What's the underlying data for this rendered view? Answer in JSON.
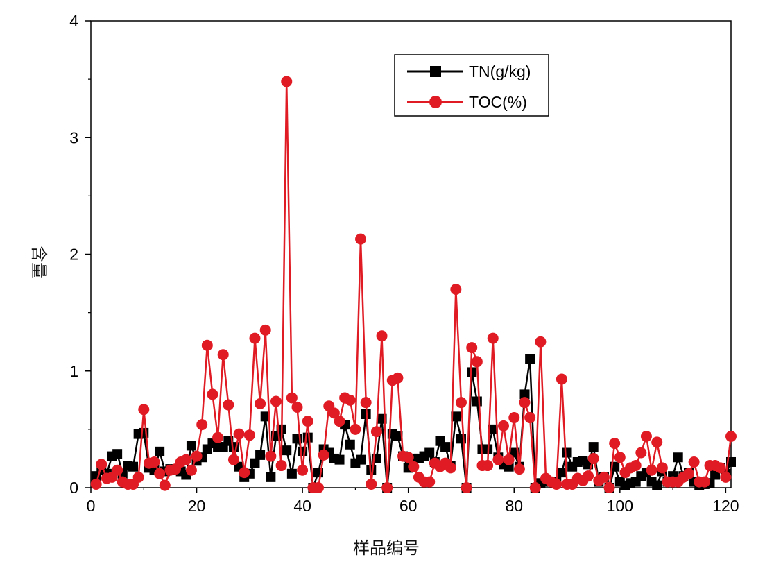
{
  "chart_data": {
    "type": "line",
    "xlabel": "样品编号",
    "ylabel": "含量",
    "xlim": [
      0,
      121
    ],
    "ylim": [
      0,
      4
    ],
    "xticks": [
      0,
      20,
      40,
      60,
      80,
      100,
      120
    ],
    "yticks": [
      0,
      1,
      2,
      3,
      4
    ],
    "grid": false,
    "legend_position": "top-center",
    "series": [
      {
        "name": "TN(g/kg)",
        "color": "#000000",
        "marker": "square",
        "x": [
          1,
          2,
          3,
          4,
          5,
          6,
          7,
          8,
          9,
          10,
          11,
          12,
          13,
          14,
          15,
          16,
          17,
          18,
          19,
          20,
          21,
          22,
          23,
          24,
          25,
          26,
          27,
          28,
          29,
          30,
          31,
          32,
          33,
          34,
          35,
          36,
          37,
          38,
          39,
          40,
          41,
          42,
          43,
          44,
          45,
          46,
          47,
          48,
          49,
          50,
          51,
          52,
          53,
          54,
          55,
          56,
          57,
          58,
          59,
          60,
          61,
          62,
          63,
          64,
          65,
          66,
          67,
          68,
          69,
          70,
          71,
          72,
          73,
          74,
          75,
          76,
          77,
          78,
          79,
          80,
          81,
          82,
          83,
          84,
          85,
          86,
          87,
          88,
          89,
          90,
          91,
          92,
          93,
          94,
          95,
          96,
          97,
          98,
          99,
          100,
          101,
          102,
          103,
          104,
          105,
          106,
          107,
          108,
          109,
          110,
          111,
          112,
          113,
          114,
          115,
          116,
          117,
          118,
          119,
          120,
          121
        ],
        "y": [
          0.1,
          0.15,
          0.12,
          0.27,
          0.29,
          0.12,
          0.19,
          0.18,
          0.46,
          0.47,
          0.17,
          0.15,
          0.31,
          0.14,
          0.16,
          0.15,
          0.14,
          0.11,
          0.36,
          0.23,
          0.26,
          0.33,
          0.38,
          0.35,
          0.35,
          0.4,
          0.35,
          0.18,
          0.09,
          0.12,
          0.21,
          0.28,
          0.61,
          0.09,
          0.44,
          0.5,
          0.32,
          0.12,
          0.42,
          0.31,
          0.43,
          0.0,
          0.13,
          0.33,
          0.3,
          0.25,
          0.24,
          0.54,
          0.37,
          0.21,
          0.24,
          0.63,
          0.15,
          0.25,
          0.59,
          0.0,
          0.46,
          0.44,
          0.27,
          0.17,
          0.25,
          0.25,
          0.27,
          0.3,
          0.22,
          0.4,
          0.35,
          0.19,
          0.61,
          0.42,
          0.0,
          0.99,
          0.74,
          0.33,
          0.33,
          0.5,
          0.26,
          0.2,
          0.18,
          0.3,
          0.18,
          0.8,
          1.1,
          0.0,
          0.04,
          0.05,
          0.05,
          0.05,
          0.13,
          0.3,
          0.18,
          0.22,
          0.23,
          0.2,
          0.35,
          0.05,
          0.09,
          0.0,
          0.18,
          0.05,
          0.02,
          0.04,
          0.05,
          0.1,
          0.13,
          0.05,
          0.02,
          0.14,
          0.05,
          0.1,
          0.26,
          0.1,
          0.13,
          0.05,
          0.02,
          0.03,
          0.04,
          0.11,
          0.17,
          0.12,
          0.22
        ]
      },
      {
        "name": "TOC(%)",
        "color": "#e01b24",
        "marker": "circle",
        "x": [
          1,
          2,
          3,
          4,
          5,
          6,
          7,
          8,
          9,
          10,
          11,
          12,
          13,
          14,
          15,
          16,
          17,
          18,
          19,
          20,
          21,
          22,
          23,
          24,
          25,
          26,
          27,
          28,
          29,
          30,
          31,
          32,
          33,
          34,
          35,
          36,
          37,
          38,
          39,
          40,
          41,
          42,
          43,
          44,
          45,
          46,
          47,
          48,
          49,
          50,
          51,
          52,
          53,
          54,
          55,
          56,
          57,
          58,
          59,
          60,
          61,
          62,
          63,
          64,
          65,
          66,
          67,
          68,
          69,
          70,
          71,
          72,
          73,
          74,
          75,
          76,
          77,
          78,
          79,
          80,
          81,
          82,
          83,
          84,
          85,
          86,
          87,
          88,
          89,
          90,
          91,
          92,
          93,
          94,
          95,
          96,
          97,
          98,
          99,
          100,
          101,
          102,
          103,
          104,
          105,
          106,
          107,
          108,
          109,
          110,
          111,
          112,
          113,
          114,
          115,
          116,
          117,
          118,
          119,
          120,
          121
        ],
        "y": [
          0.03,
          0.2,
          0.08,
          0.09,
          0.15,
          0.05,
          0.03,
          0.03,
          0.09,
          0.67,
          0.21,
          0.22,
          0.12,
          0.02,
          0.15,
          0.16,
          0.22,
          0.24,
          0.15,
          0.27,
          0.54,
          1.22,
          0.8,
          0.43,
          1.14,
          0.71,
          0.24,
          0.46,
          0.13,
          0.45,
          1.28,
          0.72,
          1.35,
          0.27,
          0.74,
          0.19,
          3.48,
          0.77,
          0.69,
          0.15,
          0.57,
          0.0,
          0.0,
          0.28,
          0.7,
          0.64,
          0.57,
          0.77,
          0.75,
          0.5,
          2.13,
          0.73,
          0.03,
          0.48,
          1.3,
          0.0,
          0.92,
          0.94,
          0.27,
          0.26,
          0.18,
          0.09,
          0.05,
          0.05,
          0.21,
          0.18,
          0.21,
          0.17,
          1.7,
          0.73,
          0.0,
          1.2,
          1.08,
          0.19,
          0.19,
          1.28,
          0.24,
          0.53,
          0.24,
          0.6,
          0.16,
          0.73,
          0.6,
          0.0,
          1.25,
          0.08,
          0.05,
          0.03,
          0.93,
          0.03,
          0.03,
          0.08,
          0.06,
          0.1,
          0.25,
          0.06,
          0.09,
          0.0,
          0.38,
          0.26,
          0.13,
          0.17,
          0.19,
          0.3,
          0.44,
          0.15,
          0.39,
          0.17,
          0.05,
          0.05,
          0.05,
          0.09,
          0.12,
          0.22,
          0.05,
          0.05,
          0.19,
          0.19,
          0.17,
          0.09,
          0.44
        ]
      }
    ]
  }
}
